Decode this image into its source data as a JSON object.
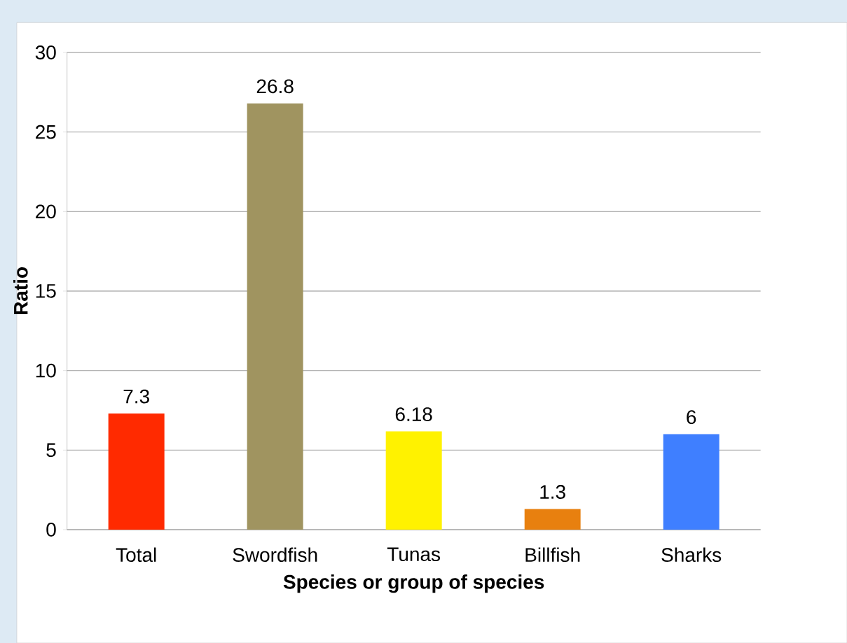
{
  "chart_data": {
    "type": "bar",
    "xlabel": "Species or group of species",
    "ylabel": "Ratio",
    "categories": [
      "Total",
      "Swordfish",
      "Tunas",
      "Billfish",
      "Sharks"
    ],
    "values": [
      7.3,
      26.8,
      6.18,
      1.3,
      6
    ],
    "colors": [
      "#ff2a00",
      "#a09460",
      "#fff200",
      "#e8800f",
      "#3f7fff"
    ],
    "data_labels": true,
    "ylim": [
      0,
      30
    ],
    "yticks": [
      0,
      5,
      10,
      15,
      20,
      25,
      30
    ],
    "grid": "y"
  }
}
